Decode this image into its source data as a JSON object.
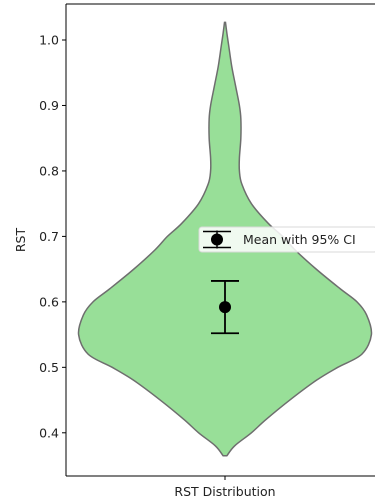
{
  "chart_data": {
    "type": "violin",
    "title": "",
    "xlabel": "",
    "ylabel": "RST",
    "categories": [
      "RST Distribution"
    ],
    "ylim": [
      0.334,
      1.055
    ],
    "yticks": [
      0.4,
      0.5,
      0.6,
      0.7,
      0.8,
      0.9,
      1.0
    ],
    "ytick_labels": [
      "0.4",
      "0.5",
      "0.6",
      "0.7",
      "0.8",
      "0.9",
      "1.0"
    ],
    "violin": {
      "fill_color": "#98df98",
      "edge_color": "#6e6e6e",
      "y_min": 0.365,
      "y_max": 1.027,
      "profile": [
        [
          0.365,
          0.04
        ],
        [
          0.38,
          0.2
        ],
        [
          0.4,
          0.55
        ],
        [
          0.42,
          0.85
        ],
        [
          0.45,
          1.35
        ],
        [
          0.48,
          1.9
        ],
        [
          0.5,
          2.35
        ],
        [
          0.52,
          2.85
        ],
        [
          0.55,
          3.05
        ],
        [
          0.58,
          2.95
        ],
        [
          0.6,
          2.75
        ],
        [
          0.62,
          2.4
        ],
        [
          0.65,
          1.9
        ],
        [
          0.68,
          1.45
        ],
        [
          0.7,
          1.2
        ],
        [
          0.72,
          0.9
        ],
        [
          0.75,
          0.55
        ],
        [
          0.78,
          0.35
        ],
        [
          0.8,
          0.3
        ],
        [
          0.82,
          0.3
        ],
        [
          0.85,
          0.33
        ],
        [
          0.88,
          0.33
        ],
        [
          0.9,
          0.3
        ],
        [
          0.93,
          0.22
        ],
        [
          0.96,
          0.14
        ],
        [
          0.99,
          0.08
        ],
        [
          1.01,
          0.04
        ],
        [
          1.027,
          0.01
        ]
      ]
    },
    "mean": 0.592,
    "ci": [
      0.552,
      0.632
    ],
    "legend": {
      "label": "Mean with 95% CI",
      "placement": "right"
    }
  }
}
